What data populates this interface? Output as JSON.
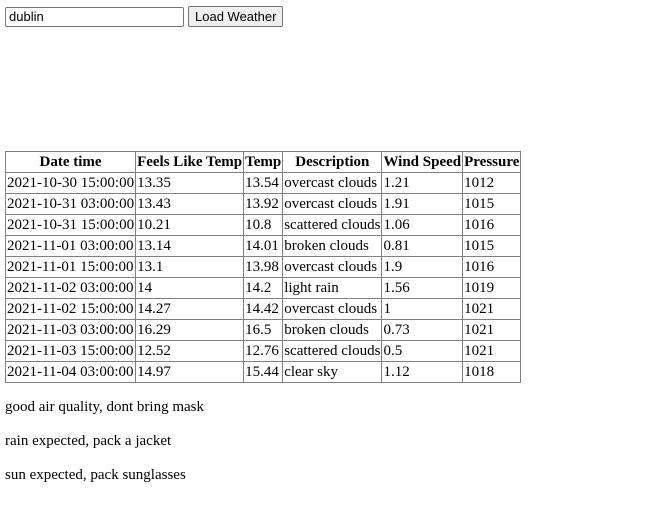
{
  "search": {
    "value": "dublin",
    "button_label": "Load Weather"
  },
  "table": {
    "headers": [
      "Date time",
      "Feels Like Temp",
      "Temp",
      "Description",
      "Wind Speed",
      "Pressure"
    ],
    "rows": [
      [
        "2021-10-30 15:00:00",
        "13.35",
        "13.54",
        "overcast clouds",
        "1.21",
        "1012"
      ],
      [
        "2021-10-31 03:00:00",
        "13.43",
        "13.92",
        "overcast clouds",
        "1.91",
        "1015"
      ],
      [
        "2021-10-31 15:00:00",
        "10.21",
        "10.8",
        "scattered clouds",
        "1.06",
        "1016"
      ],
      [
        "2021-11-01 03:00:00",
        "13.14",
        "14.01",
        "broken clouds",
        "0.81",
        "1015"
      ],
      [
        "2021-11-01 15:00:00",
        "13.1",
        "13.98",
        "overcast clouds",
        "1.9",
        "1016"
      ],
      [
        "2021-11-02 03:00:00",
        "14",
        "14.2",
        "light rain",
        "1.56",
        "1019"
      ],
      [
        "2021-11-02 15:00:00",
        "14.27",
        "14.42",
        "overcast clouds",
        "1",
        "1021"
      ],
      [
        "2021-11-03 03:00:00",
        "16.29",
        "16.5",
        "broken clouds",
        "0.73",
        "1021"
      ],
      [
        "2021-11-03 15:00:00",
        "12.52",
        "12.76",
        "scattered clouds",
        "0.5",
        "1021"
      ],
      [
        "2021-11-04 03:00:00",
        "14.97",
        "15.44",
        "clear sky",
        "1.12",
        "1018"
      ]
    ]
  },
  "messages": [
    "good air quality, dont bring mask",
    "rain expected, pack a jacket",
    "sun expected, pack sunglasses"
  ]
}
